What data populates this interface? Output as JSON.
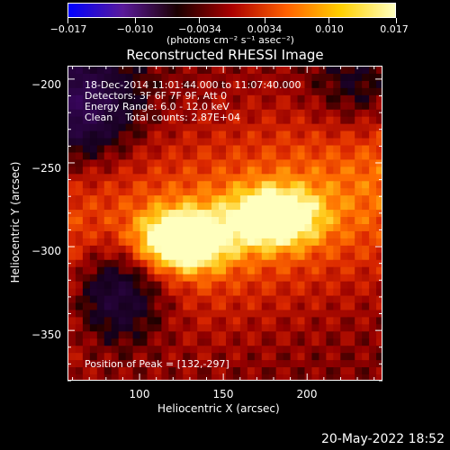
{
  "colorbar": {
    "tick_labels": [
      "−0.017",
      "−0.010",
      "−0.0034",
      "0.0034",
      "0.010",
      "0.017"
    ],
    "tick_values": [
      -0.017,
      -0.01,
      -0.0034,
      0.0034,
      0.01,
      0.017
    ],
    "range": [
      -0.017,
      0.017
    ],
    "units_text": "(photons cm⁻² s⁻¹ asec⁻²)",
    "colors": [
      "#0000ff",
      "#5a1a9a",
      "#1a0000",
      "#aa0000",
      "#ff6000",
      "#ffd000",
      "#ffffc0"
    ]
  },
  "plot": {
    "title": "Reconstructed RHESSI Image",
    "xlabel": "Heliocentric X (arcsec)",
    "ylabel": "Heliocentric Y (arcsec)",
    "x_range": [
      57,
      245
    ],
    "y_range": [
      -380,
      -192
    ],
    "x_tick_labels": [
      "100",
      "150",
      "200"
    ],
    "x_tick_values": [
      100,
      150,
      200
    ],
    "y_tick_labels": [
      "−200",
      "−250",
      "−300",
      "−350"
    ],
    "y_tick_values": [
      -200,
      -250,
      -300,
      -350
    ],
    "annotations": {
      "line1": "18-Dec-2014 11:01:44.000 to 11:07:40.000",
      "line2": "Detectors: 3F 6F 7F 9F, Att 0",
      "line3": "Energy Range: 6.0 - 12.0 keV",
      "line4": "Clean    Total counts: 2.87E+04",
      "peak": "Position of Peak = [132,-297]"
    },
    "sources": [
      {
        "x": 125,
        "y": -296,
        "amp": 1.0
      },
      {
        "x": 180,
        "y": -282,
        "amp": 0.85
      }
    ]
  },
  "timestamp": "20-May-2022 18:52"
}
